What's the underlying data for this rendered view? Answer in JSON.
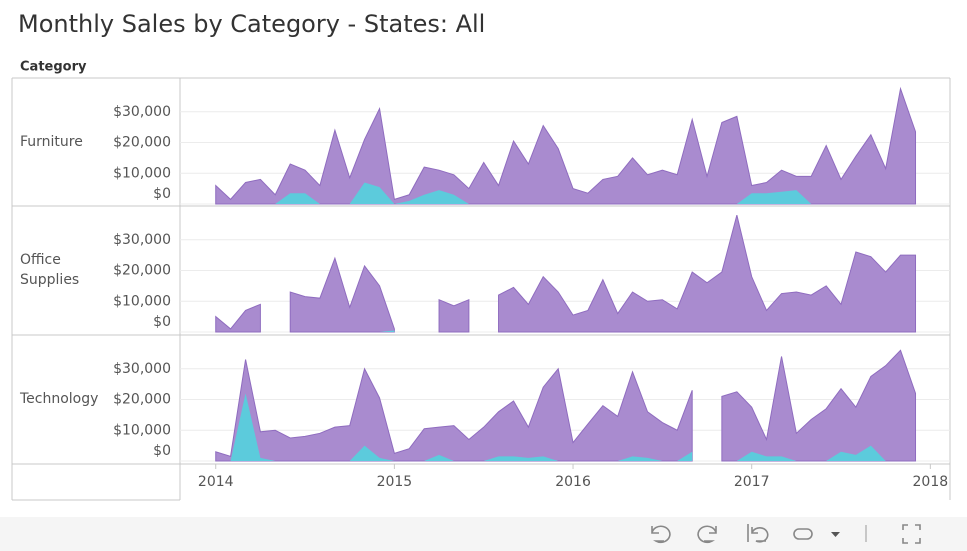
{
  "title": "Monthly Sales by Category - States: All",
  "row_header": "Category",
  "chart_data": [
    {
      "type": "area",
      "label": "Furniture",
      "x": [
        2014,
        2014.083,
        2014.167,
        2014.25,
        2014.333,
        2014.417,
        2014.5,
        2014.583,
        2014.667,
        2014.75,
        2014.833,
        2014.917,
        2015,
        2015.083,
        2015.167,
        2015.25,
        2015.333,
        2015.417,
        2015.5,
        2015.583,
        2015.667,
        2015.75,
        2015.833,
        2015.917,
        2016,
        2016.083,
        2016.167,
        2016.25,
        2016.333,
        2016.417,
        2016.5,
        2016.583,
        2016.667,
        2016.75,
        2016.833,
        2016.917,
        2017,
        2017.083,
        2017.167,
        2017.25,
        2017.333,
        2017.417,
        2017.5,
        2017.583,
        2017.667,
        2017.75,
        2017.833,
        2017.917
      ],
      "xlim": [
        2013.8,
        2018.11
      ],
      "ylim": [
        0,
        40000
      ],
      "grid": true,
      "yticks": [
        {
          "value": 0,
          "label": "$0"
        },
        {
          "value": 10000,
          "label": "$10,000"
        },
        {
          "value": 20000,
          "label": "$20,000"
        },
        {
          "value": 30000,
          "label": "$30,000"
        }
      ],
      "series": [
        {
          "color": "#a98bcf",
          "values": [
            6000,
            1500,
            7000,
            8000,
            3000,
            13000,
            11000,
            6000,
            24000,
            8500,
            21000,
            31000,
            1500,
            3000,
            12000,
            11000,
            9500,
            5000,
            13500,
            6000,
            20500,
            13000,
            25500,
            18000,
            5000,
            3500,
            8000,
            9000,
            15000,
            9500,
            11000,
            9500,
            27500,
            9000,
            26500,
            28500,
            6000,
            7000,
            11000,
            9000,
            9000,
            19000,
            8000,
            15500,
            22500,
            11500,
            37500,
            23500
          ]
        },
        {
          "color": "#5ccbdc",
          "values": [
            0,
            0,
            0,
            0,
            0,
            3500,
            3500,
            0,
            0,
            0,
            7000,
            5500,
            0,
            1000,
            3000,
            4500,
            3000,
            0,
            0,
            0,
            0,
            0,
            0,
            0,
            0,
            0,
            0,
            0,
            0,
            0,
            0,
            0,
            0,
            0,
            0,
            0,
            3500,
            3500,
            4000,
            4500,
            0,
            0,
            0,
            0,
            0,
            0,
            0,
            0
          ]
        }
      ]
    },
    {
      "type": "area",
      "label": "Office Supplies",
      "x": [
        2014,
        2014.083,
        2014.167,
        2014.25,
        2014.333,
        2014.417,
        2014.5,
        2014.583,
        2014.667,
        2014.75,
        2014.833,
        2014.917,
        2015,
        2015.083,
        2015.167,
        2015.25,
        2015.333,
        2015.417,
        2015.5,
        2015.583,
        2015.667,
        2015.75,
        2015.833,
        2015.917,
        2016,
        2016.083,
        2016.167,
        2016.25,
        2016.333,
        2016.417,
        2016.5,
        2016.583,
        2016.667,
        2016.75,
        2016.833,
        2016.917,
        2017,
        2017.083,
        2017.167,
        2017.25,
        2017.333,
        2017.417,
        2017.5,
        2017.583,
        2017.667,
        2017.75,
        2017.833,
        2017.917
      ],
      "xlim": [
        2013.8,
        2018.11
      ],
      "ylim": [
        0,
        40000
      ],
      "grid": true,
      "yticks": [
        {
          "value": 0,
          "label": "$0"
        },
        {
          "value": 10000,
          "label": "$10,000"
        },
        {
          "value": 20000,
          "label": "$20,000"
        },
        {
          "value": 30000,
          "label": "$30,000"
        }
      ],
      "series": [
        {
          "color": "#a98bcf",
          "values": [
            5000,
            1000,
            7000,
            9000,
            null,
            13000,
            11500,
            11000,
            24000,
            8000,
            21500,
            15000,
            1000,
            null,
            null,
            10500,
            8500,
            10500,
            null,
            12000,
            14500,
            9000,
            18000,
            13000,
            5500,
            7000,
            17000,
            6000,
            13000,
            10000,
            10500,
            7500,
            19500,
            16000,
            19500,
            38000,
            18000,
            7000,
            12500,
            13000,
            12000,
            15000,
            9000,
            26000,
            24500,
            19500,
            25000,
            25000
          ]
        },
        {
          "color": "#5ccbdc",
          "values": [
            0,
            0,
            0,
            0,
            null,
            0,
            0,
            0,
            0,
            0,
            0,
            0,
            500,
            null,
            null,
            0,
            0,
            0,
            null,
            0,
            0,
            0,
            0,
            0,
            0,
            0,
            0,
            0,
            0,
            0,
            0,
            0,
            0,
            0,
            0,
            0,
            0,
            0,
            0,
            0,
            0,
            0,
            0,
            0,
            0,
            0,
            0,
            0
          ]
        }
      ]
    },
    {
      "type": "area",
      "label": "Technology",
      "x": [
        2014,
        2014.083,
        2014.167,
        2014.25,
        2014.333,
        2014.417,
        2014.5,
        2014.583,
        2014.667,
        2014.75,
        2014.833,
        2014.917,
        2015,
        2015.083,
        2015.167,
        2015.25,
        2015.333,
        2015.417,
        2015.5,
        2015.583,
        2015.667,
        2015.75,
        2015.833,
        2015.917,
        2016,
        2016.083,
        2016.167,
        2016.25,
        2016.333,
        2016.417,
        2016.5,
        2016.583,
        2016.667,
        2016.75,
        2016.833,
        2016.917,
        2017,
        2017.083,
        2017.167,
        2017.25,
        2017.333,
        2017.417,
        2017.5,
        2017.583,
        2017.667,
        2017.75,
        2017.833,
        2017.917
      ],
      "xlim": [
        2013.8,
        2018.11
      ],
      "ylim": [
        0,
        40000
      ],
      "grid": true,
      "yticks": [
        {
          "value": 0,
          "label": "$0"
        },
        {
          "value": 10000,
          "label": "$10,000"
        },
        {
          "value": 20000,
          "label": "$20,000"
        },
        {
          "value": 30000,
          "label": "$30,000"
        }
      ],
      "xticks": [
        2014,
        2015,
        2016,
        2017,
        2018
      ],
      "series": [
        {
          "color": "#a98bcf",
          "values": [
            3000,
            1500,
            33000,
            9500,
            10000,
            7500,
            8000,
            9000,
            11000,
            11500,
            30000,
            20500,
            2500,
            4000,
            10500,
            11000,
            11500,
            7000,
            11000,
            16000,
            19500,
            11000,
            24000,
            30000,
            6000,
            12000,
            18000,
            14500,
            29000,
            16000,
            12500,
            10000,
            23000,
            null,
            21000,
            22500,
            17500,
            7000,
            34000,
            9000,
            13500,
            17000,
            23500,
            17500,
            27500,
            31000,
            36000,
            22000
          ]
        },
        {
          "color": "#5ccbdc",
          "values": [
            0,
            0,
            22000,
            1000,
            0,
            0,
            0,
            0,
            0,
            0,
            5000,
            1000,
            0,
            0,
            0,
            2000,
            0,
            0,
            0,
            1500,
            1500,
            1000,
            1500,
            0,
            0,
            0,
            0,
            0,
            1500,
            1000,
            0,
            0,
            3000,
            null,
            0,
            0,
            3000,
            1500,
            1500,
            0,
            0,
            0,
            3000,
            2000,
            5000,
            0,
            0,
            0
          ]
        }
      ]
    }
  ]
}
